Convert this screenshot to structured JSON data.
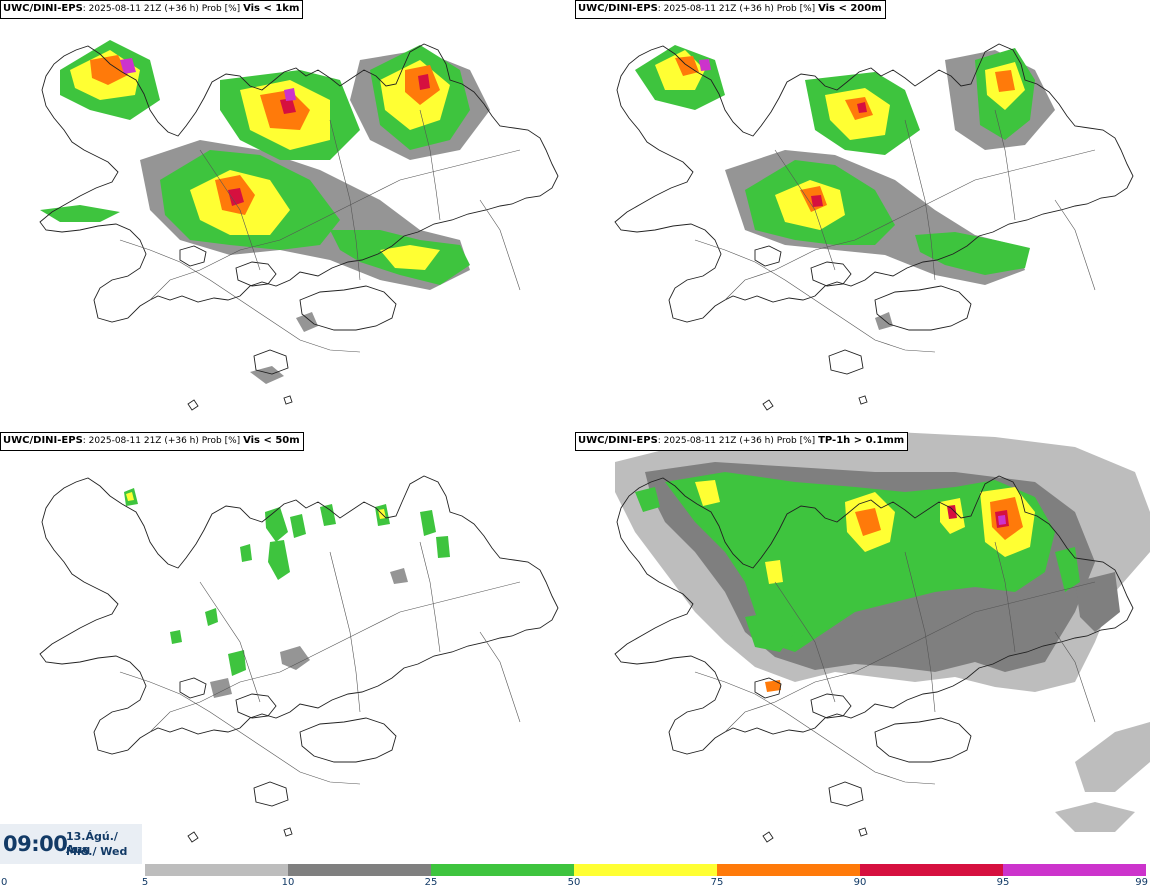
{
  "panels": [
    {
      "id": "tl",
      "source": "UWC/DINI-EPS",
      "run": "2025-08-11 21Z (+36 h) Prob [%]",
      "variable": "Vis < 1km"
    },
    {
      "id": "tr",
      "source": "UWC/DINI-EPS",
      "run": "2025-08-11 21Z (+36 h) Prob [%]",
      "variable": "Vis < 200m"
    },
    {
      "id": "bl",
      "source": "UWC/DINI-EPS",
      "run": "2025-08-11 21Z (+36 h) Prob [%]",
      "variable": "Vis < 50m"
    },
    {
      "id": "br",
      "source": "UWC/DINI-EPS",
      "run": "2025-08-11 21Z (+36 h) Prob [%]",
      "variable": "TP-1h > 0.1mm"
    }
  ],
  "valid_time": {
    "clock": "09:00",
    "date_line1": "13.Ágú./ Aug",
    "date_line2": "Mið./ Wed"
  },
  "colorbar": {
    "ticks": [
      "0",
      "5",
      "10",
      "25",
      "50",
      "75",
      "90",
      "95",
      "99"
    ],
    "segments": [
      {
        "from": 5,
        "to": 10,
        "color": "#bdbdbd"
      },
      {
        "from": 10,
        "to": 25,
        "color": "#7f7f7f"
      },
      {
        "from": 25,
        "to": 50,
        "color": "#3ec43e"
      },
      {
        "from": 50,
        "to": 75,
        "color": "#ffff33"
      },
      {
        "from": 75,
        "to": 90,
        "color": "#ff7a0a"
      },
      {
        "from": 90,
        "to": 95,
        "color": "#d6103f"
      },
      {
        "from": 95,
        "to": 99,
        "color": "#cc33cc"
      }
    ]
  }
}
